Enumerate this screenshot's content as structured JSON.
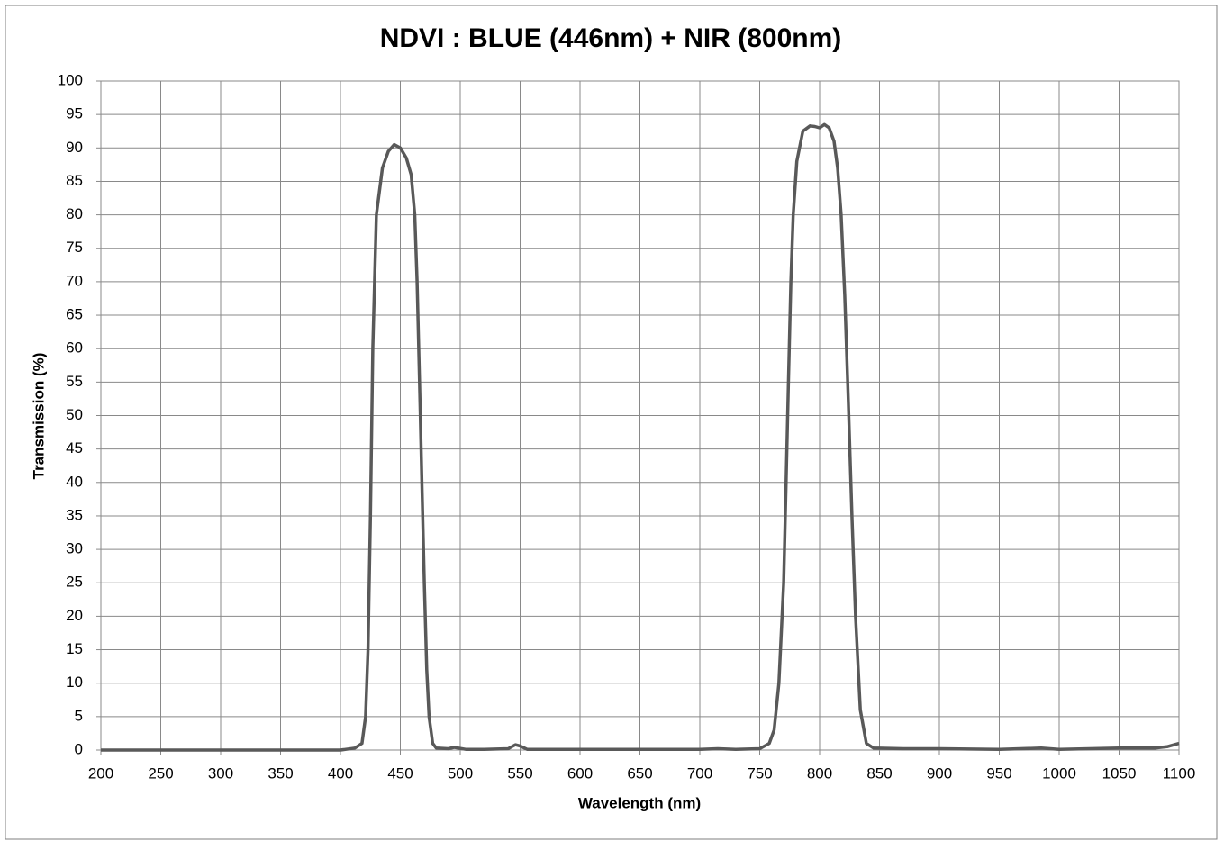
{
  "chart_data": {
    "type": "line",
    "title": "NDVI : BLUE (446nm) + NIR (800nm)",
    "x_label": "Wavelength (nm)",
    "y_label": "Transmission (%)",
    "xlim": [
      200,
      1100
    ],
    "ylim": [
      0,
      100
    ],
    "xticks": [
      200,
      250,
      300,
      350,
      400,
      450,
      500,
      550,
      600,
      650,
      700,
      750,
      800,
      850,
      900,
      950,
      1000,
      1050,
      1100
    ],
    "yticks": [
      0,
      5,
      10,
      15,
      20,
      25,
      30,
      35,
      40,
      45,
      50,
      55,
      60,
      65,
      70,
      75,
      80,
      85,
      90,
      95,
      100
    ],
    "grid": true,
    "series": [
      {
        "name": "Transmission",
        "color": "#595959",
        "x": [
          200,
          300,
          400,
          412,
          418,
          421,
          423,
          425,
          427,
          430,
          435,
          440,
          445,
          450,
          455,
          459,
          462,
          464,
          466,
          468,
          470,
          472,
          474,
          477,
          480,
          490,
          495,
          505,
          520,
          540,
          546,
          550,
          556,
          600,
          650,
          700,
          715,
          730,
          750,
          758,
          762,
          766,
          770,
          772,
          774,
          776,
          778,
          781,
          786,
          792,
          796,
          800,
          804,
          808,
          812,
          815,
          818,
          821,
          824,
          827,
          830,
          834,
          839,
          845,
          870,
          900,
          950,
          985,
          1000,
          1050,
          1080,
          1090,
          1100
        ],
        "values": [
          0,
          0,
          0,
          0.3,
          1,
          5,
          15,
          35,
          60,
          80,
          87,
          89.5,
          90.5,
          90,
          88.5,
          86,
          80,
          70,
          55,
          40,
          25,
          12,
          5,
          1,
          0.3,
          0.2,
          0.4,
          0.1,
          0.1,
          0.2,
          0.8,
          0.6,
          0.1,
          0.1,
          0.1,
          0.1,
          0.2,
          0.1,
          0.2,
          1,
          3,
          10,
          25,
          40,
          55,
          70,
          80,
          88,
          92.5,
          93.3,
          93.2,
          93,
          93.5,
          93,
          91,
          87,
          80,
          68,
          52,
          35,
          20,
          6,
          1,
          0.3,
          0.2,
          0.2,
          0.1,
          0.3,
          0.1,
          0.3,
          0.3,
          0.5,
          1
        ]
      }
    ]
  }
}
